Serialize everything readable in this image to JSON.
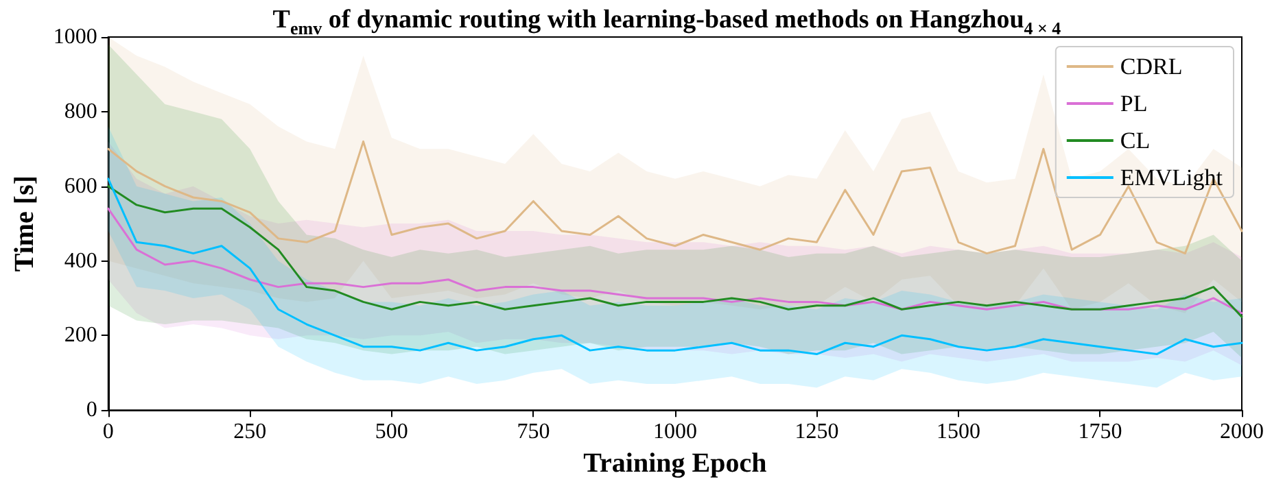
{
  "chart_data": {
    "type": "line",
    "title": "T$_{emv}$ of dynamic routing with learning-based methods on Hangzhou$_{4 × 4}$",
    "xlabel": "Training Epoch",
    "ylabel": "Time [s]",
    "x": [
      0,
      50,
      100,
      150,
      200,
      250,
      300,
      350,
      400,
      450,
      500,
      550,
      600,
      650,
      700,
      750,
      800,
      850,
      900,
      950,
      1000,
      1050,
      1100,
      1150,
      1200,
      1250,
      1300,
      1350,
      1400,
      1450,
      1500,
      1550,
      1600,
      1650,
      1700,
      1750,
      1800,
      1850,
      1900,
      1950,
      2000
    ],
    "xlim": [
      0,
      2000
    ],
    "xticks": [
      0,
      250,
      500,
      750,
      1000,
      1250,
      1500,
      1750,
      2000
    ],
    "ylim": [
      0,
      1000
    ],
    "yticks": [
      0,
      200,
      400,
      600,
      800,
      1000
    ],
    "grid": false,
    "legend": "top right",
    "marker": "none",
    "line_style": "solid",
    "series": [
      {
        "name": "CDRL",
        "color": "#deb887",
        "values": [
          700,
          640,
          600,
          570,
          560,
          530,
          460,
          450,
          480,
          720,
          470,
          490,
          500,
          460,
          480,
          560,
          480,
          470,
          520,
          460,
          440,
          470,
          450,
          430,
          460,
          450,
          590,
          470,
          640,
          650,
          450,
          420,
          440,
          700,
          430,
          470,
          600,
          450,
          420,
          620,
          480
        ],
        "upper": [
          1000,
          950,
          920,
          880,
          850,
          820,
          760,
          720,
          700,
          950,
          730,
          700,
          700,
          680,
          660,
          740,
          660,
          640,
          690,
          640,
          620,
          640,
          620,
          600,
          630,
          620,
          750,
          640,
          780,
          800,
          640,
          610,
          620,
          900,
          620,
          640,
          700,
          620,
          600,
          700,
          650
        ],
        "lower": [
          400,
          380,
          360,
          340,
          330,
          320,
          300,
          290,
          300,
          400,
          300,
          310,
          320,
          300,
          310,
          340,
          310,
          300,
          320,
          290,
          280,
          290,
          280,
          270,
          280,
          280,
          330,
          290,
          350,
          360,
          280,
          270,
          280,
          380,
          270,
          290,
          340,
          280,
          260,
          350,
          290
        ]
      },
      {
        "name": "PL",
        "color": "#da70d6",
        "values": [
          540,
          430,
          390,
          400,
          380,
          350,
          330,
          340,
          340,
          330,
          340,
          340,
          350,
          320,
          330,
          330,
          320,
          320,
          310,
          300,
          300,
          300,
          290,
          300,
          290,
          290,
          280,
          290,
          270,
          290,
          280,
          270,
          280,
          290,
          270,
          270,
          270,
          280,
          270,
          300,
          260
        ],
        "upper": [
          720,
          620,
          580,
          600,
          560,
          520,
          500,
          510,
          500,
          490,
          500,
          500,
          510,
          480,
          480,
          480,
          470,
          470,
          460,
          450,
          450,
          450,
          440,
          450,
          440,
          440,
          430,
          440,
          420,
          440,
          430,
          420,
          430,
          440,
          420,
          420,
          420,
          430,
          420,
          450,
          410
        ],
        "lower": [
          350,
          260,
          220,
          230,
          220,
          200,
          190,
          200,
          200,
          190,
          200,
          200,
          210,
          180,
          190,
          190,
          180,
          180,
          170,
          160,
          160,
          160,
          150,
          160,
          150,
          150,
          140,
          150,
          130,
          150,
          140,
          130,
          140,
          150,
          130,
          130,
          130,
          140,
          130,
          160,
          120
        ]
      },
      {
        "name": "CL",
        "color": "#228b22",
        "values": [
          600,
          550,
          530,
          540,
          540,
          490,
          430,
          330,
          320,
          290,
          270,
          290,
          280,
          290,
          270,
          280,
          290,
          300,
          280,
          290,
          290,
          290,
          300,
          290,
          270,
          280,
          280,
          300,
          270,
          280,
          290,
          280,
          290,
          280,
          270,
          270,
          280,
          290,
          300,
          330,
          250
        ],
        "upper": [
          980,
          900,
          820,
          800,
          780,
          700,
          560,
          470,
          460,
          430,
          410,
          430,
          420,
          430,
          410,
          420,
          430,
          440,
          420,
          430,
          430,
          430,
          440,
          430,
          410,
          420,
          420,
          440,
          410,
          420,
          430,
          420,
          430,
          420,
          410,
          410,
          420,
          430,
          440,
          470,
          400
        ],
        "lower": [
          280,
          240,
          230,
          240,
          240,
          230,
          220,
          190,
          180,
          160,
          150,
          160,
          160,
          170,
          150,
          160,
          170,
          180,
          160,
          170,
          170,
          170,
          180,
          170,
          150,
          160,
          160,
          180,
          150,
          160,
          170,
          160,
          170,
          160,
          150,
          150,
          160,
          170,
          180,
          210,
          140
        ]
      },
      {
        "name": "EMVLight",
        "color": "#00bfff",
        "values": [
          620,
          450,
          440,
          420,
          440,
          380,
          270,
          230,
          200,
          170,
          170,
          160,
          180,
          160,
          170,
          190,
          200,
          160,
          170,
          160,
          160,
          170,
          180,
          160,
          160,
          150,
          180,
          170,
          200,
          190,
          170,
          160,
          170,
          190,
          180,
          170,
          160,
          150,
          190,
          170,
          180
        ],
        "upper": [
          760,
          600,
          580,
          560,
          570,
          500,
          400,
          350,
          320,
          290,
          290,
          280,
          300,
          280,
          290,
          310,
          320,
          280,
          290,
          280,
          280,
          290,
          300,
          280,
          280,
          270,
          300,
          290,
          320,
          310,
          290,
          280,
          290,
          310,
          300,
          290,
          280,
          270,
          310,
          290,
          300
        ],
        "lower": [
          480,
          330,
          320,
          300,
          310,
          270,
          170,
          130,
          100,
          80,
          80,
          70,
          90,
          70,
          80,
          100,
          110,
          70,
          80,
          70,
          70,
          80,
          90,
          70,
          70,
          60,
          90,
          80,
          110,
          100,
          80,
          70,
          80,
          100,
          90,
          80,
          70,
          60,
          100,
          80,
          90
        ]
      }
    ]
  }
}
